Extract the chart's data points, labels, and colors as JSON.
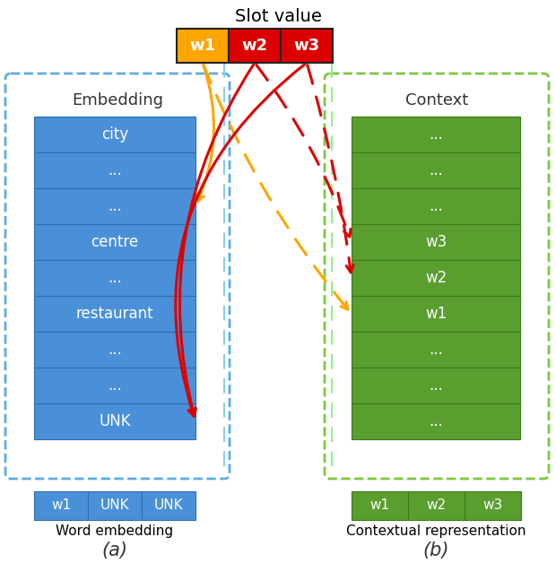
{
  "title": "Slot value",
  "slot_words": [
    "w1",
    "w2",
    "w3"
  ],
  "slot_colors": [
    "#FFA500",
    "#DD0000",
    "#DD0000"
  ],
  "slot_text_colors": [
    "#ffffff",
    "#ffffff",
    "#ffffff"
  ],
  "embedding_label": "Embedding",
  "context_label": "Context",
  "embedding_rows": [
    "city",
    "...",
    "...",
    "centre",
    "...",
    "restaurant",
    "...",
    "...",
    "UNK"
  ],
  "context_rows": [
    "...",
    "...",
    "...",
    "w3",
    "w2",
    "w1",
    "...",
    "...",
    "..."
  ],
  "embedding_color": "#4A90D9",
  "context_color": "#5A9E2F",
  "emb_border_color": "#5DADE2",
  "ctx_border_color": "#7DC742",
  "emb_row_border": "#2c6fad",
  "ctx_row_border": "#3a7a1a",
  "bottom_embedding_labels": [
    "w1",
    "UNK",
    "UNK"
  ],
  "bottom_context_labels": [
    "w1",
    "w2",
    "w3"
  ],
  "word_embedding_text": "Word embedding",
  "contextual_rep_text": "Contextual representation",
  "label_a": "(a)",
  "label_b": "(b)",
  "arrow_yellow": "#FFA500",
  "arrow_red": "#DD0000",
  "fig_bg": "#ffffff"
}
